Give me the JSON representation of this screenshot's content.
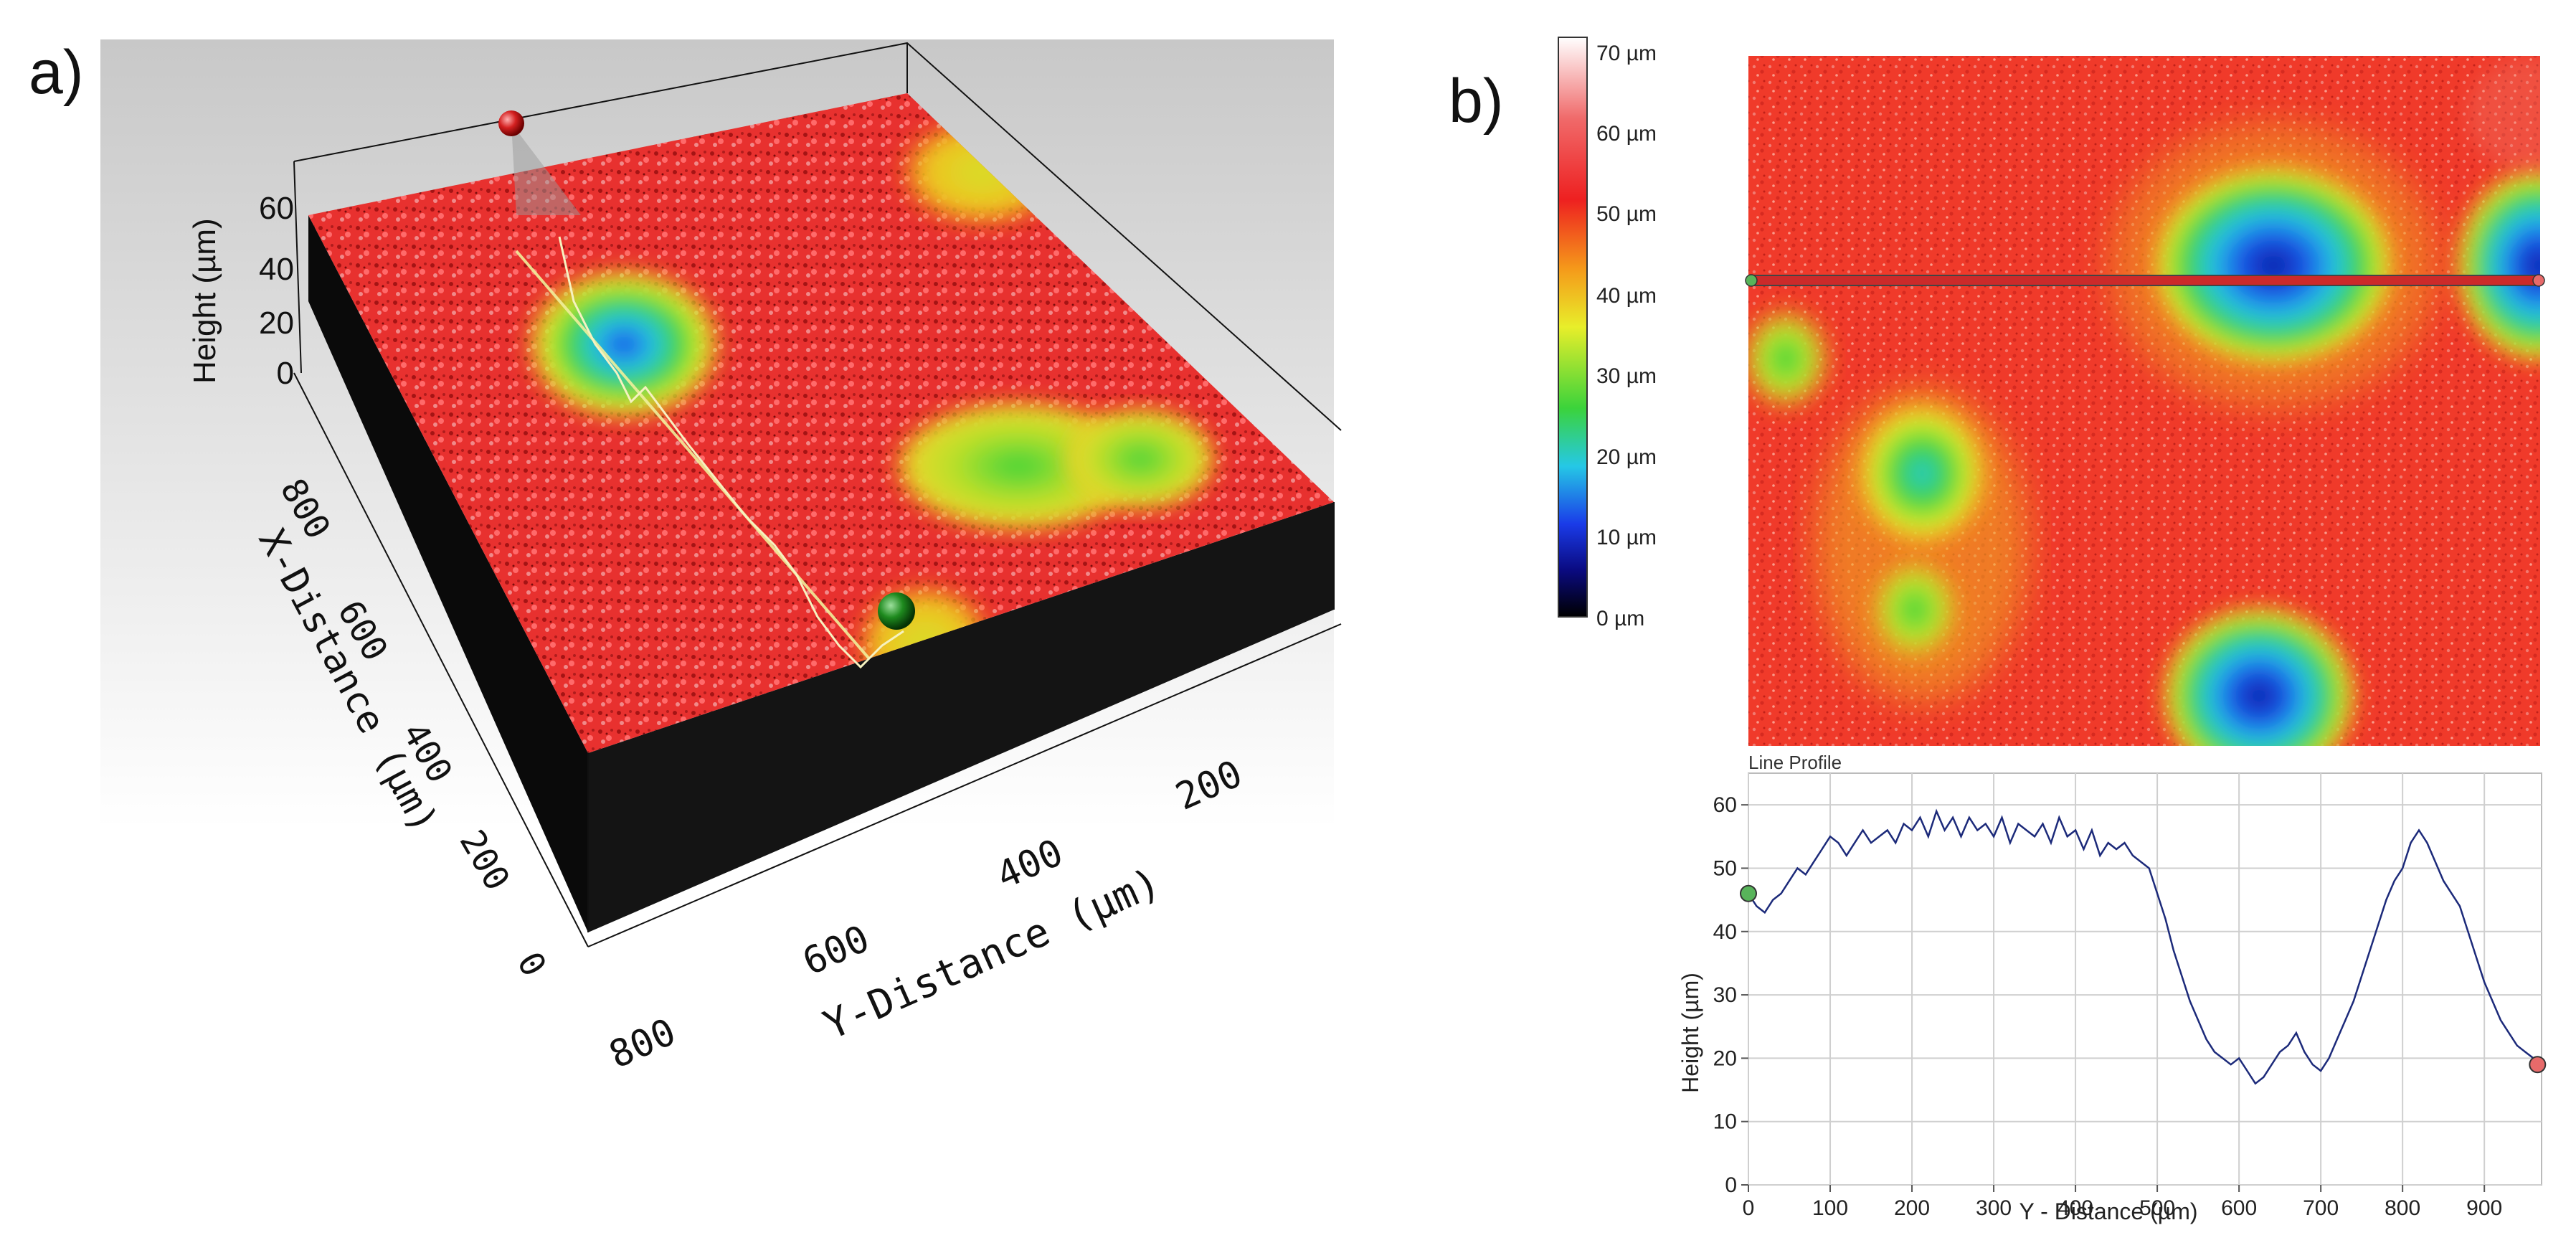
{
  "panel_a": {
    "label": "a)",
    "z_axis": {
      "label": "Height (µm)",
      "ticks": [
        "60",
        "40",
        "20",
        "0"
      ]
    },
    "x_axis": {
      "label": "X-Distance (µm)",
      "ticks": [
        "800",
        "600",
        "400",
        "200",
        "0"
      ]
    },
    "y_axis": {
      "label": "Y-Distance (µm)",
      "ticks": [
        "800",
        "600",
        "400",
        "200"
      ]
    }
  },
  "panel_b": {
    "label": "b)",
    "colorbar": {
      "ticks": [
        "70 µm",
        "60 µm",
        "50 µm",
        "40 µm",
        "30 µm",
        "20 µm",
        "10 µm",
        "0 µm"
      ]
    },
    "colors": {
      "red": "#ee2020",
      "orange": "#f59a1a",
      "yellow": "#f2ee2a",
      "green": "#3bd33b",
      "cyan": "#25c8e6",
      "blue": "#1a4fe8",
      "navy": "#0a0a60"
    }
  },
  "chart_data": {
    "type": "line",
    "title": "Line Profile",
    "xlabel": "Y - Distance (µm)",
    "ylabel": "Height (µm)",
    "xlim": [
      0,
      970
    ],
    "ylim": [
      0,
      65
    ],
    "xticks": [
      0,
      100,
      200,
      300,
      400,
      500,
      600,
      700,
      800,
      900
    ],
    "yticks": [
      0,
      10,
      20,
      30,
      40,
      50,
      60
    ],
    "series": [
      {
        "name": "Line Profile",
        "color": "#1c2a7a",
        "x": [
          0,
          10,
          20,
          30,
          40,
          50,
          60,
          70,
          80,
          90,
          100,
          110,
          120,
          130,
          140,
          150,
          160,
          170,
          180,
          190,
          200,
          210,
          220,
          230,
          240,
          250,
          260,
          270,
          280,
          290,
          300,
          310,
          320,
          330,
          340,
          350,
          360,
          370,
          380,
          390,
          400,
          410,
          420,
          430,
          440,
          450,
          460,
          470,
          480,
          490,
          500,
          510,
          520,
          530,
          540,
          550,
          560,
          570,
          580,
          590,
          600,
          610,
          620,
          630,
          640,
          650,
          660,
          670,
          680,
          690,
          700,
          710,
          720,
          730,
          740,
          750,
          760,
          770,
          780,
          790,
          800,
          810,
          820,
          830,
          840,
          850,
          860,
          870,
          880,
          890,
          900,
          910,
          920,
          930,
          940,
          950,
          960,
          965
        ],
        "y": [
          46,
          44,
          43,
          45,
          46,
          48,
          50,
          49,
          51,
          53,
          55,
          54,
          52,
          54,
          56,
          54,
          55,
          56,
          54,
          57,
          56,
          58,
          55,
          59,
          56,
          58,
          55,
          58,
          56,
          57,
          55,
          58,
          54,
          57,
          56,
          55,
          57,
          54,
          58,
          55,
          56,
          53,
          56,
          52,
          54,
          53,
          54,
          52,
          51,
          50,
          46,
          42,
          37,
          33,
          29,
          26,
          23,
          21,
          20,
          19,
          20,
          18,
          16,
          17,
          19,
          21,
          22,
          24,
          21,
          19,
          18,
          20,
          23,
          26,
          29,
          33,
          37,
          41,
          45,
          48,
          50,
          54,
          56,
          54,
          51,
          48,
          46,
          44,
          40,
          36,
          32,
          29,
          26,
          24,
          22,
          21,
          20,
          19
        ]
      }
    ],
    "markers": [
      {
        "name": "start-marker",
        "x": 0,
        "y": 46,
        "color": "#58b45a"
      },
      {
        "name": "end-marker",
        "x": 965,
        "y": 19,
        "color": "#e76a6a"
      }
    ]
  }
}
